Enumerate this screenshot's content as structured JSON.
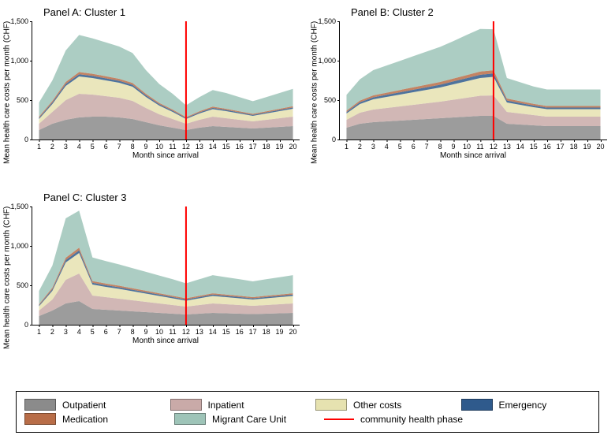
{
  "ylabel": "Mean health care costs per month (CHF)",
  "xlabel": "Month since arrival",
  "ylim": [
    0,
    1500
  ],
  "yticks": [
    0,
    500,
    1000,
    1500
  ],
  "xticks": [
    1,
    2,
    3,
    4,
    5,
    6,
    7,
    8,
    9,
    10,
    11,
    12,
    13,
    14,
    15,
    16,
    17,
    18,
    19,
    20
  ],
  "vline_x": 12,
  "vline_color": "#ff0000",
  "colors": {
    "outpatient": "#8b8b8b",
    "inpatient": "#c9aaa8",
    "other": "#e6e2b0",
    "emergency": "#2f5a8c",
    "medication": "#b86d48",
    "migrant": "#9ec4b8",
    "phase_line": "#ff0000"
  },
  "legend_labels": {
    "outpatient": "Outpatient",
    "inpatient": "Inpatient",
    "other": "Other costs",
    "emergency": "Emergency",
    "medication": "Medication",
    "migrant": "Migrant Care Unit",
    "phase": "community health phase"
  },
  "panels": [
    {
      "id": "A",
      "title": "Panel A: Cluster 1",
      "series": {
        "outpatient": [
          120,
          200,
          250,
          280,
          290,
          290,
          280,
          260,
          220,
          180,
          150,
          120,
          150,
          170,
          160,
          150,
          140,
          150,
          160,
          170
        ],
        "inpatient": [
          80,
          150,
          250,
          300,
          280,
          260,
          250,
          230,
          180,
          140,
          110,
          80,
          100,
          120,
          110,
          100,
          90,
          100,
          110,
          120
        ],
        "other": [
          60,
          100,
          180,
          220,
          210,
          200,
          190,
          180,
          140,
          110,
          90,
          60,
          80,
          95,
          90,
          80,
          70,
          80,
          90,
          100
        ],
        "emergency": [
          15,
          20,
          25,
          28,
          27,
          26,
          25,
          24,
          20,
          17,
          15,
          12,
          14,
          16,
          15,
          14,
          13,
          14,
          15,
          16
        ],
        "medication": [
          15,
          20,
          25,
          28,
          27,
          26,
          25,
          24,
          20,
          17,
          15,
          12,
          14,
          16,
          15,
          14,
          13,
          14,
          15,
          16
        ],
        "migrant": [
          180,
          260,
          400,
          470,
          450,
          430,
          410,
          380,
          300,
          240,
          200,
          150,
          180,
          210,
          200,
          180,
          160,
          180,
          200,
          220
        ]
      }
    },
    {
      "id": "B",
      "title": "Panel B: Cluster 2",
      "series": {
        "outpatient": [
          150,
          200,
          220,
          230,
          240,
          250,
          260,
          270,
          280,
          290,
          300,
          300,
          200,
          190,
          180,
          170,
          170,
          170,
          170,
          170
        ],
        "inpatient": [
          100,
          140,
          160,
          170,
          180,
          190,
          200,
          210,
          225,
          240,
          255,
          260,
          150,
          140,
          130,
          120,
          120,
          120,
          120,
          120
        ],
        "other": [
          80,
          110,
          130,
          140,
          150,
          160,
          170,
          180,
          195,
          210,
          225,
          235,
          120,
          110,
          100,
          95,
          95,
          95,
          95,
          95
        ],
        "emergency": [
          18,
          22,
          25,
          27,
          29,
          31,
          33,
          35,
          37,
          39,
          41,
          42,
          25,
          23,
          21,
          20,
          20,
          20,
          20,
          20
        ],
        "medication": [
          18,
          22,
          25,
          27,
          29,
          31,
          33,
          35,
          37,
          39,
          41,
          42,
          25,
          23,
          21,
          20,
          20,
          20,
          20,
          20
        ],
        "migrant": [
          200,
          270,
          320,
          345,
          370,
          395,
          420,
          445,
          475,
          510,
          540,
          520,
          260,
          240,
          220,
          210,
          210,
          210,
          210,
          210
        ]
      }
    },
    {
      "id": "C",
      "title": "Panel C: Cluster 3",
      "series": {
        "outpatient": [
          110,
          180,
          270,
          300,
          200,
          190,
          180,
          170,
          160,
          150,
          140,
          130,
          140,
          150,
          145,
          140,
          135,
          140,
          145,
          150
        ],
        "inpatient": [
          70,
          140,
          300,
          350,
          170,
          160,
          150,
          140,
          130,
          120,
          110,
          100,
          110,
          120,
          115,
          110,
          105,
          110,
          115,
          120
        ],
        "other": [
          55,
          110,
          220,
          260,
          140,
          130,
          125,
          115,
          105,
          95,
          85,
          75,
          85,
          95,
          90,
          85,
          80,
          85,
          90,
          95
        ],
        "emergency": [
          12,
          20,
          30,
          34,
          22,
          21,
          20,
          19,
          18,
          17,
          16,
          15,
          16,
          17,
          16,
          16,
          15,
          16,
          16,
          17
        ],
        "medication": [
          12,
          20,
          30,
          34,
          22,
          21,
          20,
          19,
          18,
          17,
          16,
          15,
          16,
          17,
          16,
          16,
          15,
          16,
          16,
          17
        ],
        "migrant": [
          170,
          280,
          500,
          470,
          300,
          285,
          270,
          255,
          240,
          225,
          210,
          190,
          210,
          230,
          220,
          210,
          200,
          210,
          220,
          230
        ]
      }
    }
  ]
}
